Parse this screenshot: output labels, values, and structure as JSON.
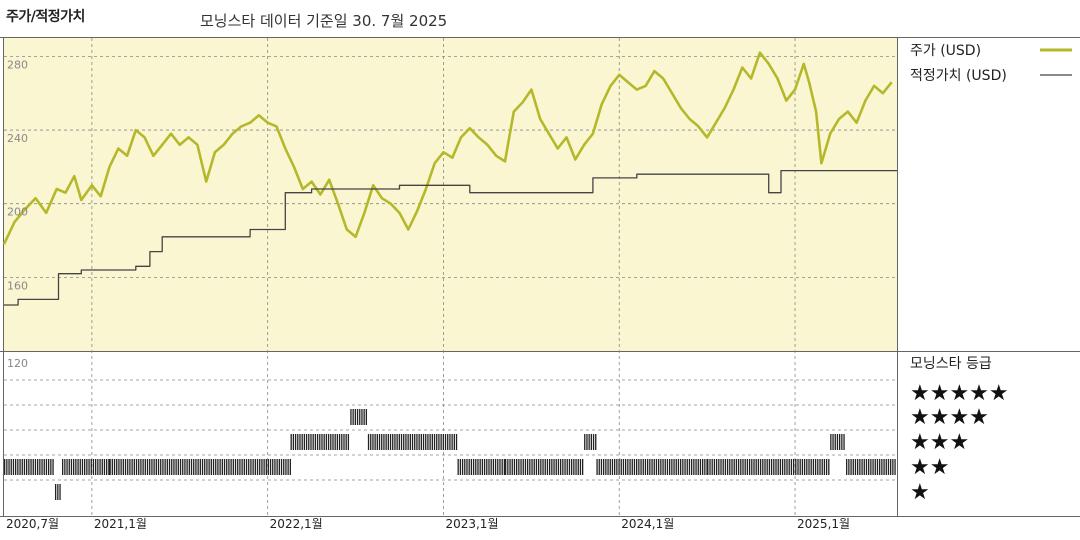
{
  "header": {
    "title": "주가/적정가치",
    "subtitle": "모닝스타 데이터 기준일 30. 7월 2025"
  },
  "colors": {
    "price_line": "#b5b82a",
    "fair_value_line": "#444444",
    "panel_bg": "#fbf6d2",
    "rating_bar": "#222222",
    "grid": "#888888"
  },
  "rating_panel": {
    "title": "모닝스타 등급",
    "star_labels": [
      "★★★★★",
      "★★★★",
      "★★★",
      "★★",
      "★"
    ]
  },
  "chart_data": {
    "type": "line",
    "ylim": [
      120,
      290
    ],
    "y_ticks": [
      "280",
      "240",
      "200",
      "160",
      "120"
    ],
    "x_date_labels": [
      "2020,7월",
      "2021,1월",
      "2022,1월",
      "2023,1월",
      "2024,1월",
      "2025,1월"
    ],
    "x_date_values": [
      2020.5,
      2021.0,
      2022.0,
      2023.0,
      2024.0,
      2025.0
    ],
    "xlim": [
      2020.5,
      2025.58
    ],
    "series": [
      {
        "name": "주가 (USD)",
        "style": "price",
        "points": [
          [
            2020.5,
            178
          ],
          [
            2020.56,
            190
          ],
          [
            2020.62,
            197
          ],
          [
            2020.68,
            203
          ],
          [
            2020.74,
            195
          ],
          [
            2020.8,
            208
          ],
          [
            2020.85,
            206
          ],
          [
            2020.9,
            215
          ],
          [
            2020.94,
            202
          ],
          [
            2021.0,
            210
          ],
          [
            2021.05,
            204
          ],
          [
            2021.1,
            220
          ],
          [
            2021.15,
            230
          ],
          [
            2021.2,
            226
          ],
          [
            2021.25,
            240
          ],
          [
            2021.3,
            236
          ],
          [
            2021.35,
            226
          ],
          [
            2021.4,
            232
          ],
          [
            2021.45,
            238
          ],
          [
            2021.5,
            232
          ],
          [
            2021.55,
            236
          ],
          [
            2021.6,
            232
          ],
          [
            2021.65,
            212
          ],
          [
            2021.7,
            228
          ],
          [
            2021.75,
            232
          ],
          [
            2021.8,
            238
          ],
          [
            2021.85,
            242
          ],
          [
            2021.9,
            244
          ],
          [
            2021.95,
            248
          ],
          [
            2022.0,
            244
          ],
          [
            2022.05,
            242
          ],
          [
            2022.1,
            230
          ],
          [
            2022.15,
            220
          ],
          [
            2022.2,
            208
          ],
          [
            2022.25,
            212
          ],
          [
            2022.3,
            205
          ],
          [
            2022.35,
            213
          ],
          [
            2022.4,
            200
          ],
          [
            2022.45,
            186
          ],
          [
            2022.5,
            182
          ],
          [
            2022.55,
            195
          ],
          [
            2022.6,
            210
          ],
          [
            2022.65,
            203
          ],
          [
            2022.7,
            200
          ],
          [
            2022.75,
            195
          ],
          [
            2022.8,
            186
          ],
          [
            2022.85,
            196
          ],
          [
            2022.9,
            208
          ],
          [
            2022.95,
            222
          ],
          [
            2023.0,
            228
          ],
          [
            2023.05,
            225
          ],
          [
            2023.1,
            236
          ],
          [
            2023.15,
            241
          ],
          [
            2023.2,
            236
          ],
          [
            2023.25,
            232
          ],
          [
            2023.3,
            226
          ],
          [
            2023.35,
            223
          ],
          [
            2023.4,
            250
          ],
          [
            2023.45,
            255
          ],
          [
            2023.5,
            262
          ],
          [
            2023.55,
            246
          ],
          [
            2023.6,
            238
          ],
          [
            2023.65,
            230
          ],
          [
            2023.7,
            236
          ],
          [
            2023.75,
            224
          ],
          [
            2023.8,
            232
          ],
          [
            2023.85,
            238
          ],
          [
            2023.9,
            254
          ],
          [
            2023.95,
            264
          ],
          [
            2024.0,
            270
          ],
          [
            2024.05,
            266
          ],
          [
            2024.1,
            262
          ],
          [
            2024.15,
            264
          ],
          [
            2024.2,
            272
          ],
          [
            2024.25,
            268
          ],
          [
            2024.3,
            260
          ],
          [
            2024.35,
            252
          ],
          [
            2024.4,
            246
          ],
          [
            2024.45,
            242
          ],
          [
            2024.5,
            236
          ],
          [
            2024.55,
            244
          ],
          [
            2024.6,
            252
          ],
          [
            2024.65,
            262
          ],
          [
            2024.7,
            274
          ],
          [
            2024.75,
            268
          ],
          [
            2024.8,
            282
          ],
          [
            2024.85,
            276
          ],
          [
            2024.9,
            268
          ],
          [
            2024.95,
            256
          ],
          [
            2025.0,
            262
          ],
          [
            2025.05,
            276
          ],
          [
            2025.08,
            266
          ],
          [
            2025.12,
            250
          ],
          [
            2025.15,
            222
          ],
          [
            2025.2,
            238
          ],
          [
            2025.25,
            246
          ],
          [
            2025.3,
            250
          ],
          [
            2025.35,
            244
          ],
          [
            2025.4,
            256
          ],
          [
            2025.45,
            264
          ],
          [
            2025.5,
            260
          ],
          [
            2025.55,
            266
          ]
        ]
      },
      {
        "name": "적정가치 (USD)",
        "style": "fair_value",
        "points": [
          [
            2020.5,
            145
          ],
          [
            2020.58,
            145
          ],
          [
            2020.58,
            148
          ],
          [
            2020.81,
            148
          ],
          [
            2020.81,
            162
          ],
          [
            2020.94,
            162
          ],
          [
            2020.94,
            164
          ],
          [
            2021.25,
            164
          ],
          [
            2021.25,
            166
          ],
          [
            2021.33,
            166
          ],
          [
            2021.33,
            174
          ],
          [
            2021.4,
            174
          ],
          [
            2021.4,
            182
          ],
          [
            2021.9,
            182
          ],
          [
            2021.9,
            186
          ],
          [
            2022.1,
            186
          ],
          [
            2022.1,
            206
          ],
          [
            2022.25,
            206
          ],
          [
            2022.25,
            208
          ],
          [
            2022.75,
            208
          ],
          [
            2022.75,
            210
          ],
          [
            2023.15,
            210
          ],
          [
            2023.15,
            206
          ],
          [
            2023.85,
            206
          ],
          [
            2023.85,
            214
          ],
          [
            2024.1,
            214
          ],
          [
            2024.1,
            216
          ],
          [
            2024.85,
            216
          ],
          [
            2024.85,
            206
          ],
          [
            2024.92,
            206
          ],
          [
            2024.92,
            218
          ],
          [
            2025.58,
            218
          ]
        ]
      }
    ],
    "ratings": [
      {
        "start": 2020.5,
        "end": 2020.79,
        "stars": 2
      },
      {
        "start": 2020.79,
        "end": 2020.83,
        "stars": 1
      },
      {
        "start": 2020.83,
        "end": 2021.1,
        "stars": 2
      },
      {
        "start": 2021.1,
        "end": 2022.0,
        "stars": 2
      },
      {
        "start": 2022.0,
        "end": 2022.13,
        "stars": 2
      },
      {
        "start": 2022.13,
        "end": 2022.47,
        "stars": 3
      },
      {
        "start": 2022.47,
        "end": 2022.57,
        "stars": 4
      },
      {
        "start": 2022.57,
        "end": 2023.08,
        "stars": 3
      },
      {
        "start": 2023.08,
        "end": 2023.35,
        "stars": 2
      },
      {
        "start": 2023.35,
        "end": 2023.8,
        "stars": 2
      },
      {
        "start": 2023.8,
        "end": 2023.87,
        "stars": 3
      },
      {
        "start": 2023.87,
        "end": 2024.5,
        "stars": 2
      },
      {
        "start": 2024.5,
        "end": 2025.2,
        "stars": 2
      },
      {
        "start": 2025.2,
        "end": 2025.29,
        "stars": 3
      },
      {
        "start": 2025.29,
        "end": 2025.58,
        "stars": 2
      }
    ]
  }
}
